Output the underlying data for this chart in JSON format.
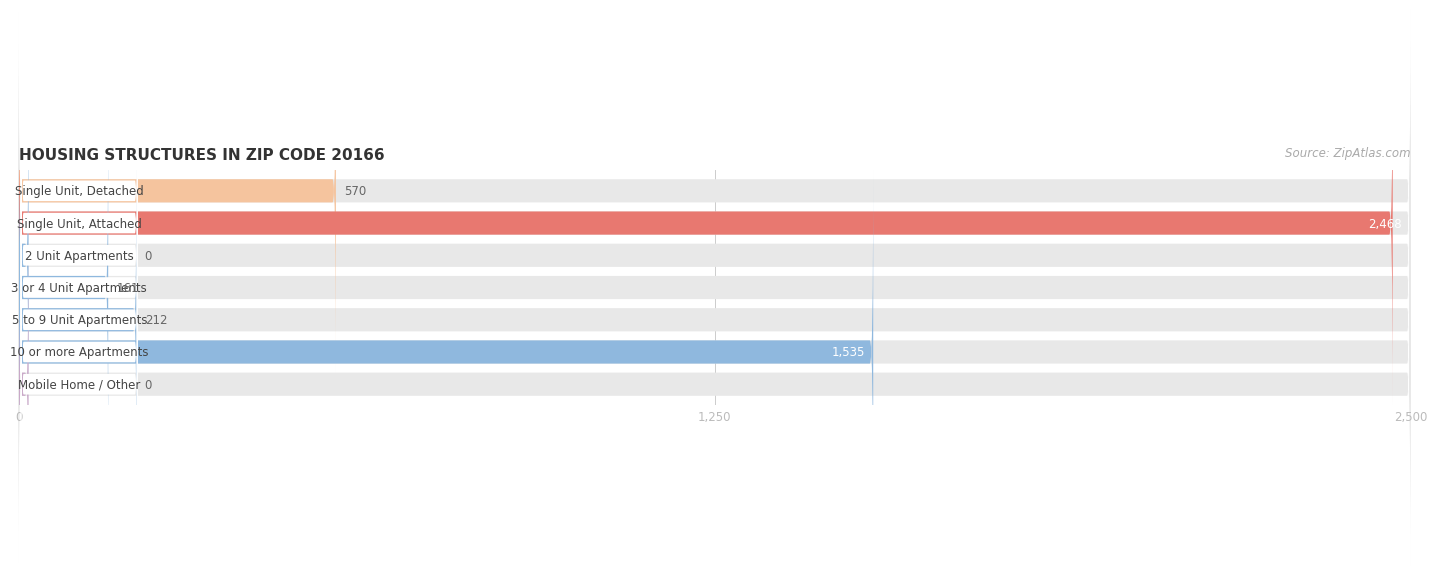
{
  "title": "HOUSING STRUCTURES IN ZIP CODE 20166",
  "source": "Source: ZipAtlas.com",
  "categories": [
    "Single Unit, Detached",
    "Single Unit, Attached",
    "2 Unit Apartments",
    "3 or 4 Unit Apartments",
    "5 to 9 Unit Apartments",
    "10 or more Apartments",
    "Mobile Home / Other"
  ],
  "values": [
    570,
    2468,
    0,
    161,
    212,
    1535,
    0
  ],
  "bar_colors": [
    "#f5c49e",
    "#e87870",
    "#8fb8de",
    "#8fb8de",
    "#8fb8de",
    "#8fb8de",
    "#c9a8c8"
  ],
  "bar_bg_color": "#e8e8e8",
  "label_bg_color": "#ffffff",
  "xlim": [
    0,
    2500
  ],
  "xticks": [
    0,
    1250,
    2500
  ],
  "xtick_labels": [
    "0",
    "1,250",
    "2,500"
  ],
  "title_fontsize": 11,
  "label_fontsize": 8.5,
  "value_fontsize": 8.5,
  "source_fontsize": 8.5,
  "bar_height": 0.72,
  "fig_bg_color": "#ffffff",
  "title_color": "#333333",
  "source_color": "#aaaaaa",
  "label_color": "#444444",
  "value_color_outside": "#666666",
  "tick_color": "#bbbbbb",
  "grid_color": "#cccccc"
}
